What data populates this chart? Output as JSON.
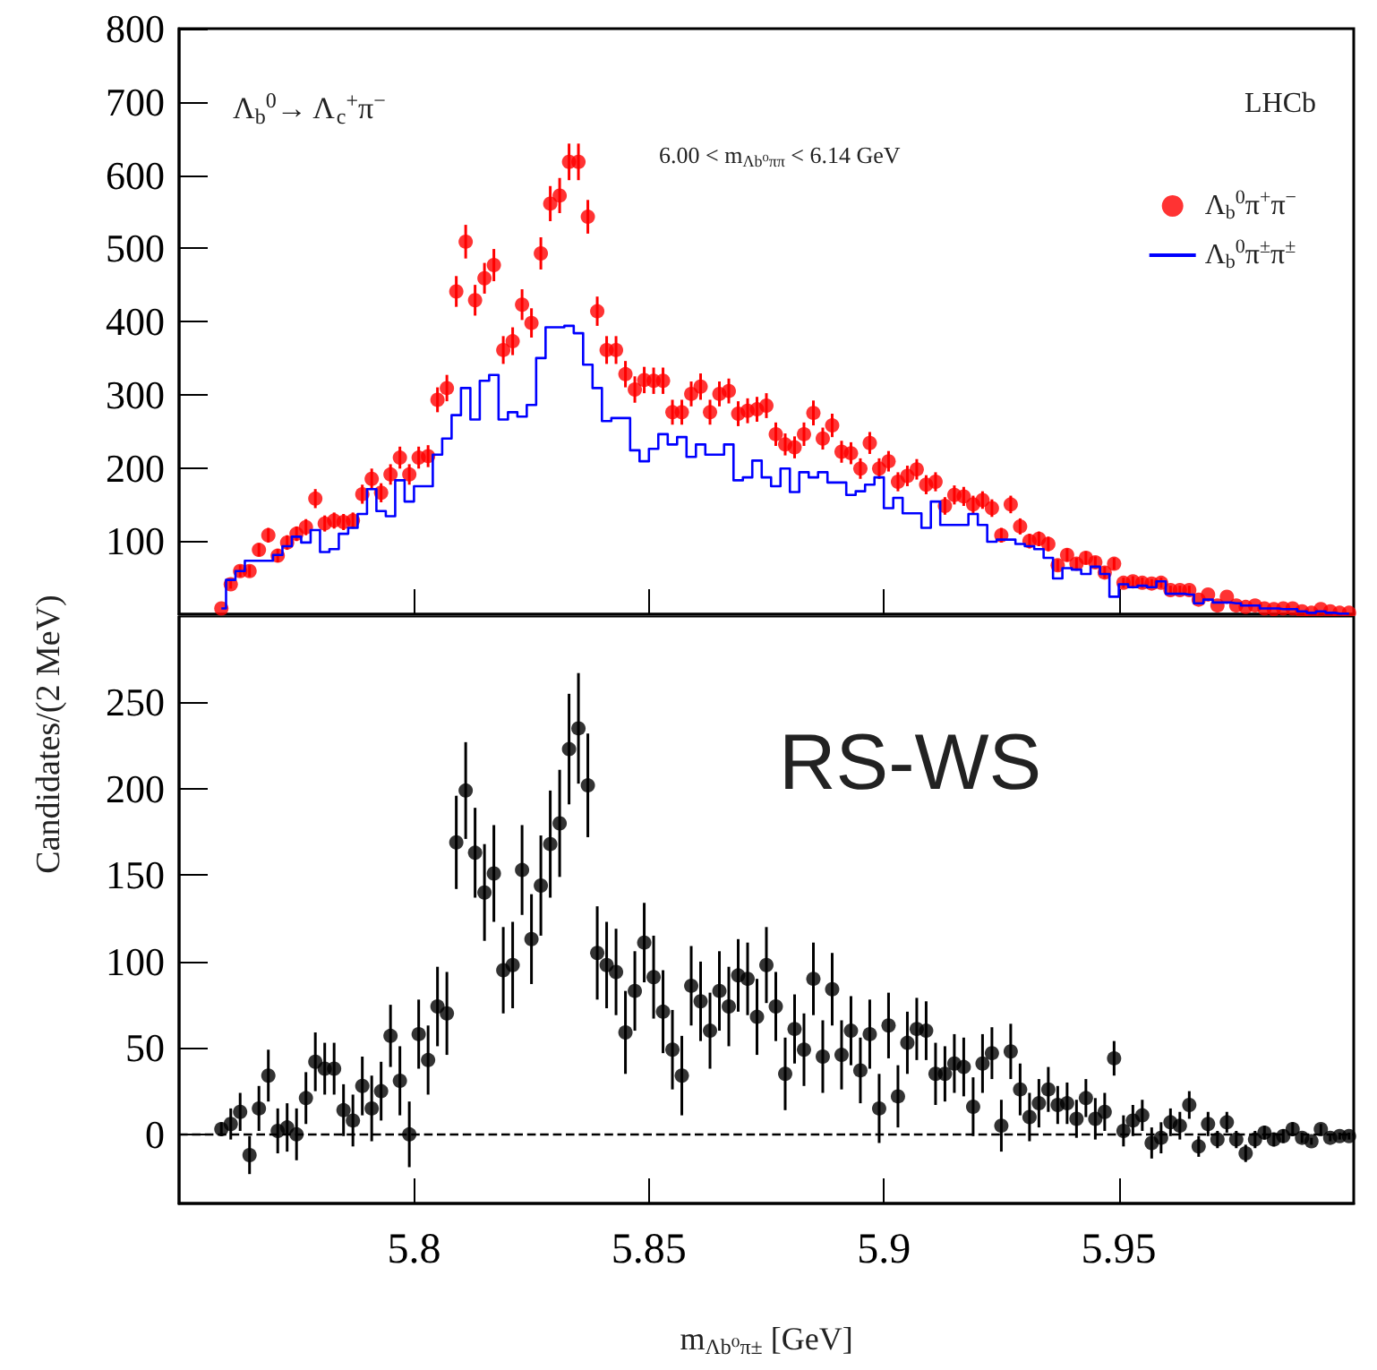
{
  "chart_data": [
    {
      "type": "scatter",
      "ylabel": "Candidates/(2 MeV)",
      "marker": "circle",
      "legend": "top right",
      "tick_labels": "y",
      "annotations": [
        "Λ$_{b}$$^{0}$→ Λ$_{c}$$^{+}$π$^{−}$",
        "6.00 < m$_{Λb⁰ππ}$ < 6.14 GeV",
        "LHCb"
      ],
      "xlim": [
        5.75,
        6.0
      ],
      "xticks": [
        {
          "value": 5.8,
          "label": null
        },
        {
          "value": 5.85,
          "label": null
        },
        {
          "value": 5.9,
          "label": null
        },
        {
          "value": 5.95,
          "label": null
        }
      ],
      "ylim": [
        0,
        800
      ],
      "yticks": [
        100,
        200,
        300,
        400,
        500,
        600,
        700,
        800
      ],
      "x": [
        5.759,
        5.761,
        5.763,
        5.765,
        5.767,
        5.769,
        5.771,
        5.773,
        5.775,
        5.777,
        5.779,
        5.781,
        5.783,
        5.785,
        5.787,
        5.789,
        5.791,
        5.793,
        5.795,
        5.797,
        5.799,
        5.801,
        5.803,
        5.805,
        5.807,
        5.809,
        5.811,
        5.813,
        5.815,
        5.817,
        5.819,
        5.821,
        5.823,
        5.825,
        5.827,
        5.829,
        5.831,
        5.833,
        5.835,
        5.837,
        5.839,
        5.841,
        5.843,
        5.845,
        5.847,
        5.849,
        5.851,
        5.853,
        5.855,
        5.857,
        5.859,
        5.861,
        5.863,
        5.865,
        5.867,
        5.869,
        5.871,
        5.873,
        5.875,
        5.877,
        5.879,
        5.881,
        5.883,
        5.885,
        5.887,
        5.889,
        5.891,
        5.893,
        5.895,
        5.897,
        5.899,
        5.901,
        5.903,
        5.905,
        5.907,
        5.909,
        5.911,
        5.913,
        5.915,
        5.917,
        5.919,
        5.921,
        5.923,
        5.925,
        5.927,
        5.929,
        5.931,
        5.933,
        5.935,
        5.937,
        5.939,
        5.941,
        5.943,
        5.945,
        5.947,
        5.949,
        5.951,
        5.953,
        5.955,
        5.957,
        5.959,
        5.961,
        5.963,
        5.965,
        5.967,
        5.969,
        5.971,
        5.973,
        5.975,
        5.977,
        5.979,
        5.981,
        5.983,
        5.985,
        5.987,
        5.989,
        5.991,
        5.993,
        5.995,
        5.997,
        5.999
      ],
      "series": [
        {
          "name": "Λ$_{b}$$^{0}$π$^{+}$π$^{−}$",
          "color": "#ff0000",
          "values": [
            8,
            41,
            59,
            59,
            88,
            108,
            80,
            98,
            110,
            119,
            158,
            124,
            128,
            126,
            128,
            164,
            185,
            166,
            191,
            214,
            191,
            214,
            216,
            293,
            309,
            441,
            509,
            429,
            459,
            477,
            361,
            373,
            423,
            398,
            493,
            561,
            572,
            618,
            618,
            543,
            414,
            361,
            361,
            328,
            307,
            320,
            319,
            319,
            276,
            276,
            301,
            311,
            276,
            301,
            305,
            274,
            278,
            280,
            285,
            246,
            232,
            228,
            246,
            275,
            240,
            258,
            222,
            220,
            199,
            234,
            199,
            209,
            181,
            189,
            198,
            177,
            181,
            148,
            163,
            161,
            150,
            156,
            145,
            108,
            150,
            120,
            100,
            103,
            96,
            67,
            81,
            69,
            77,
            71,
            57,
            69,
            43,
            45,
            43,
            42,
            43,
            33,
            33,
            33,
            20,
            27,
            12,
            24,
            12,
            10,
            12,
            8,
            7,
            8,
            8,
            4,
            2,
            7,
            4,
            2,
            2
          ],
          "errors": [
            null,
            6,
            8,
            8,
            9,
            10,
            9,
            10,
            10,
            11,
            13,
            11,
            11,
            11,
            11,
            13,
            14,
            13,
            14,
            15,
            14,
            15,
            15,
            17,
            18,
            21,
            23,
            21,
            21,
            22,
            19,
            19,
            21,
            20,
            22,
            24,
            24,
            25,
            25,
            23,
            20,
            19,
            19,
            18,
            18,
            18,
            18,
            18,
            17,
            17,
            17,
            18,
            17,
            17,
            17,
            17,
            17,
            17,
            17,
            16,
            15,
            15,
            16,
            17,
            15,
            16,
            15,
            15,
            14,
            15,
            14,
            14,
            13,
            14,
            14,
            13,
            13,
            12,
            13,
            13,
            12,
            12,
            12,
            10,
            12,
            11,
            10,
            10,
            10,
            8,
            9,
            8,
            9,
            8,
            8,
            8,
            7,
            7,
            7,
            6,
            7,
            6,
            6,
            6,
            null,
            null,
            null,
            null,
            null,
            null,
            null,
            null,
            null,
            null,
            null,
            null,
            null,
            null,
            null,
            null,
            null
          ]
        },
        {
          "name": "Λ$_{b}$$^{0}$π$^{±}$π$^{±}$",
          "type": "step",
          "marker": "none",
          "color": "#0000ff",
          "values": [
            8,
            47,
            59,
            73,
            73,
            73,
            81,
            93,
            106,
            98,
            115,
            85,
            89,
            110,
            118,
            137,
            171,
            141,
            134,
            183,
            154,
            175,
            175,
            218,
            240,
            272,
            309,
            266,
            319,
            327,
            266,
            276,
            270,
            286,
            350,
            392,
            392,
            394,
            384,
            341,
            309,
            264,
            268,
            268,
            224,
            209,
            226,
            246,
            232,
            242,
            215,
            232,
            218,
            218,
            232,
            183,
            187,
            210,
            187,
            175,
            199,
            167,
            194,
            187,
            194,
            180,
            180,
            163,
            168,
            177,
            187,
            145,
            159,
            138,
            138,
            118,
            154,
            122,
            122,
            122,
            137,
            122,
            99,
            102,
            102,
            96,
            93,
            89,
            77,
            49,
            63,
            61,
            55,
            65,
            55,
            24,
            41,
            37,
            39,
            37,
            45,
            28,
            28,
            27,
            15,
            20,
            16,
            16,
            15,
            12,
            12,
            8,
            8,
            7,
            7,
            4,
            2,
            4,
            2,
            1,
            1
          ]
        }
      ]
    },
    {
      "type": "scatter",
      "xlabel": "m$_{Λb⁰π±}$ [GeV]",
      "marker": "circle",
      "annotations": [
        "RS-WS"
      ],
      "xlim": [
        5.75,
        6.0
      ],
      "xticks": [
        5.8,
        5.85,
        5.9,
        5.95
      ],
      "ylim": [
        -40,
        300
      ],
      "yticks": [
        0,
        50,
        100,
        150,
        200,
        250
      ],
      "ref_lines": [
        {
          "axis": "y",
          "value": 0,
          "color": "#000000",
          "line_style": "dashed"
        }
      ],
      "x": [
        5.759,
        5.761,
        5.763,
        5.765,
        5.767,
        5.769,
        5.771,
        5.773,
        5.775,
        5.777,
        5.779,
        5.781,
        5.783,
        5.785,
        5.787,
        5.789,
        5.791,
        5.793,
        5.795,
        5.797,
        5.799,
        5.801,
        5.803,
        5.805,
        5.807,
        5.809,
        5.811,
        5.813,
        5.815,
        5.817,
        5.819,
        5.821,
        5.823,
        5.825,
        5.827,
        5.829,
        5.831,
        5.833,
        5.835,
        5.837,
        5.839,
        5.841,
        5.843,
        5.845,
        5.847,
        5.849,
        5.851,
        5.853,
        5.855,
        5.857,
        5.859,
        5.861,
        5.863,
        5.865,
        5.867,
        5.869,
        5.871,
        5.873,
        5.875,
        5.877,
        5.879,
        5.881,
        5.883,
        5.885,
        5.887,
        5.889,
        5.891,
        5.893,
        5.895,
        5.897,
        5.899,
        5.901,
        5.903,
        5.905,
        5.907,
        5.909,
        5.911,
        5.913,
        5.915,
        5.917,
        5.919,
        5.921,
        5.923,
        5.925,
        5.927,
        5.929,
        5.931,
        5.933,
        5.935,
        5.937,
        5.939,
        5.941,
        5.943,
        5.945,
        5.947,
        5.949,
        5.951,
        5.953,
        5.955,
        5.957,
        5.959,
        5.961,
        5.963,
        5.965,
        5.967,
        5.969,
        5.971,
        5.973,
        5.975,
        5.977,
        5.979,
        5.981,
        5.983,
        5.985,
        5.987,
        5.989,
        5.991,
        5.993,
        5.995,
        5.997,
        5.999
      ],
      "series": [
        {
          "color": "#000000",
          "values": [
            3,
            6,
            13,
            -12,
            15,
            34,
            2,
            4,
            0,
            21,
            42,
            38,
            38,
            14,
            8,
            28,
            15,
            25,
            57,
            31,
            0,
            58,
            43,
            74,
            70,
            169,
            199,
            163,
            140,
            151,
            95,
            98,
            153,
            113,
            144,
            168,
            180,
            223,
            235,
            202,
            105,
            98,
            94,
            59,
            83,
            111,
            91,
            71,
            49,
            34,
            86,
            77,
            60,
            83,
            74,
            92,
            90,
            68,
            98,
            74,
            35,
            61,
            49,
            90,
            45,
            84,
            46,
            60,
            37,
            58,
            15,
            63,
            22,
            53,
            61,
            60,
            35,
            35,
            41,
            39,
            16,
            41,
            47,
            5,
            48,
            26,
            10,
            18,
            26,
            17,
            18,
            9,
            21,
            9,
            13,
            44,
            2,
            8,
            11,
            -5,
            -2,
            7,
            5,
            17,
            -7,
            6,
            -3,
            7,
            -3,
            -11,
            -3,
            1,
            -3,
            -1,
            3,
            -2,
            -4,
            3,
            -2,
            -1,
            -1
          ],
          "errors": [
            4,
            9,
            11,
            11,
            13,
            15,
            13,
            14,
            15,
            15,
            17,
            15,
            15,
            15,
            15,
            17,
            19,
            17,
            18,
            20,
            19,
            20,
            20,
            23,
            24,
            27,
            28,
            26,
            28,
            28,
            25,
            25,
            26,
            26,
            29,
            31,
            31,
            32,
            32,
            30,
            27,
            25,
            25,
            24,
            23,
            23,
            24,
            24,
            23,
            23,
            23,
            23,
            22,
            23,
            23,
            21,
            21,
            22,
            22,
            20,
            21,
            20,
            21,
            21,
            21,
            21,
            20,
            20,
            19,
            20,
            20,
            19,
            18,
            18,
            18,
            17,
            18,
            16,
            17,
            17,
            17,
            17,
            15,
            15,
            16,
            15,
            14,
            14,
            13,
            11,
            12,
            11,
            11,
            12,
            11,
            10,
            9,
            9,
            9,
            9,
            9,
            8,
            8,
            8,
            6,
            7,
            5,
            6,
            5,
            5,
            5,
            4,
            4,
            4,
            4,
            3,
            2,
            3,
            2,
            2,
            2
          ]
        }
      ]
    }
  ]
}
